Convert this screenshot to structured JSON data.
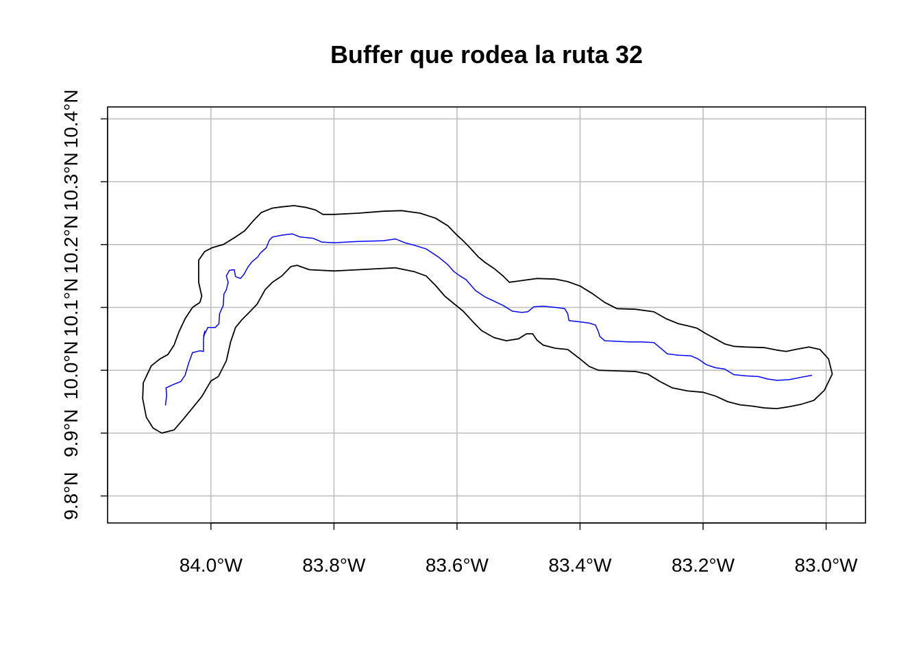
{
  "chart_data": {
    "type": "line",
    "title": "Buffer que rodea la ruta 32",
    "xlabel": "",
    "ylabel": "",
    "xlim": [
      -84.168,
      -82.936
    ],
    "ylim": [
      9.757,
      10.419
    ],
    "x_ticks": [
      {
        "value": -84.0,
        "label": "84.0°W"
      },
      {
        "value": -83.8,
        "label": "83.8°W"
      },
      {
        "value": -83.6,
        "label": "83.6°W"
      },
      {
        "value": -83.4,
        "label": "83.4°W"
      },
      {
        "value": -83.2,
        "label": "83.2°W"
      },
      {
        "value": -83.0,
        "label": "83.0°W"
      }
    ],
    "y_ticks": [
      {
        "value": 9.8,
        "label": "9.8°N"
      },
      {
        "value": 9.9,
        "label": "9.9°N"
      },
      {
        "value": 10.0,
        "label": "10.0°N"
      },
      {
        "value": 10.1,
        "label": "10.1°N"
      },
      {
        "value": 10.2,
        "label": "10.2°N"
      },
      {
        "value": 10.3,
        "label": "10.3°N"
      },
      {
        "value": 10.4,
        "label": "10.4°N"
      }
    ],
    "grid": true,
    "series": [
      {
        "color": "#0000ff",
        "points": [
          [
            -84.074,
            9.944
          ],
          [
            -84.072,
            9.96
          ],
          [
            -84.073,
            9.972
          ],
          [
            -84.062,
            9.977
          ],
          [
            -84.049,
            9.982
          ],
          [
            -84.042,
            9.992
          ],
          [
            -84.036,
            10.012
          ],
          [
            -84.03,
            10.028
          ],
          [
            -84.018,
            10.031
          ],
          [
            -84.012,
            10.03
          ],
          [
            -84.012,
            10.05
          ],
          [
            -84.01,
            10.062
          ],
          [
            -84.012,
            10.054
          ],
          [
            -84.005,
            10.068
          ],
          [
            -83.993,
            10.068
          ],
          [
            -83.987,
            10.074
          ],
          [
            -83.986,
            10.09
          ],
          [
            -83.98,
            10.103
          ],
          [
            -83.979,
            10.121
          ],
          [
            -83.975,
            10.128
          ],
          [
            -83.972,
            10.14
          ],
          [
            -83.975,
            10.15
          ],
          [
            -83.97,
            10.159
          ],
          [
            -83.962,
            10.16
          ],
          [
            -83.96,
            10.149
          ],
          [
            -83.952,
            10.146
          ],
          [
            -83.946,
            10.153
          ],
          [
            -83.94,
            10.164
          ],
          [
            -83.933,
            10.173
          ],
          [
            -83.924,
            10.18
          ],
          [
            -83.92,
            10.186
          ],
          [
            -83.91,
            10.195
          ],
          [
            -83.905,
            10.207
          ],
          [
            -83.9,
            10.212
          ],
          [
            -83.885,
            10.215
          ],
          [
            -83.868,
            10.217
          ],
          [
            -83.855,
            10.212
          ],
          [
            -83.834,
            10.21
          ],
          [
            -83.82,
            10.204
          ],
          [
            -83.8,
            10.203
          ],
          [
            -83.76,
            10.205
          ],
          [
            -83.72,
            10.206
          ],
          [
            -83.7,
            10.209
          ],
          [
            -83.685,
            10.203
          ],
          [
            -83.67,
            10.199
          ],
          [
            -83.65,
            10.193
          ],
          [
            -83.63,
            10.18
          ],
          [
            -83.615,
            10.168
          ],
          [
            -83.605,
            10.157
          ],
          [
            -83.595,
            10.15
          ],
          [
            -83.585,
            10.144
          ],
          [
            -83.57,
            10.127
          ],
          [
            -83.555,
            10.117
          ],
          [
            -83.54,
            10.11
          ],
          [
            -83.525,
            10.103
          ],
          [
            -83.51,
            10.094
          ],
          [
            -83.495,
            10.092
          ],
          [
            -83.485,
            10.093
          ],
          [
            -83.475,
            10.101
          ],
          [
            -83.46,
            10.102
          ],
          [
            -83.44,
            10.1
          ],
          [
            -83.425,
            10.098
          ],
          [
            -83.42,
            10.09
          ],
          [
            -83.418,
            10.079
          ],
          [
            -83.4,
            10.077
          ],
          [
            -83.385,
            10.075
          ],
          [
            -83.375,
            10.072
          ],
          [
            -83.37,
            10.061
          ],
          [
            -83.368,
            10.054
          ],
          [
            -83.36,
            10.047
          ],
          [
            -83.34,
            10.046
          ],
          [
            -83.32,
            10.045
          ],
          [
            -83.3,
            10.045
          ],
          [
            -83.28,
            10.044
          ],
          [
            -83.27,
            10.036
          ],
          [
            -83.258,
            10.026
          ],
          [
            -83.24,
            10.024
          ],
          [
            -83.22,
            10.023
          ],
          [
            -83.208,
            10.018
          ],
          [
            -83.195,
            10.009
          ],
          [
            -83.18,
            10.004
          ],
          [
            -83.165,
            10.002
          ],
          [
            -83.15,
            9.993
          ],
          [
            -83.13,
            9.991
          ],
          [
            -83.11,
            9.99
          ],
          [
            -83.095,
            9.986
          ],
          [
            -83.08,
            9.984
          ],
          [
            -83.06,
            9.985
          ],
          [
            -83.04,
            9.989
          ],
          [
            -83.023,
            9.992
          ]
        ]
      },
      {
        "color": "#000000",
        "closed": true,
        "points": [
          [
            -84.08,
            9.9
          ],
          [
            -84.06,
            9.905
          ],
          [
            -84.045,
            9.922
          ],
          [
            -84.03,
            9.94
          ],
          [
            -84.015,
            9.958
          ],
          [
            -84.0,
            9.983
          ],
          [
            -83.988,
            9.99
          ],
          [
            -83.975,
            10.015
          ],
          [
            -83.968,
            10.045
          ],
          [
            -83.96,
            10.068
          ],
          [
            -83.95,
            10.08
          ],
          [
            -83.94,
            10.09
          ],
          [
            -83.925,
            10.105
          ],
          [
            -83.912,
            10.128
          ],
          [
            -83.9,
            10.14
          ],
          [
            -83.885,
            10.15
          ],
          [
            -83.87,
            10.165
          ],
          [
            -83.86,
            10.167
          ],
          [
            -83.84,
            10.16
          ],
          [
            -83.8,
            10.158
          ],
          [
            -83.76,
            10.16
          ],
          [
            -83.72,
            10.162
          ],
          [
            -83.7,
            10.163
          ],
          [
            -83.67,
            10.157
          ],
          [
            -83.65,
            10.15
          ],
          [
            -83.635,
            10.135
          ],
          [
            -83.62,
            10.118
          ],
          [
            -83.605,
            10.106
          ],
          [
            -83.59,
            10.094
          ],
          [
            -83.575,
            10.078
          ],
          [
            -83.56,
            10.063
          ],
          [
            -83.54,
            10.052
          ],
          [
            -83.52,
            10.047
          ],
          [
            -83.5,
            10.05
          ],
          [
            -83.487,
            10.058
          ],
          [
            -83.477,
            10.058
          ],
          [
            -83.47,
            10.048
          ],
          [
            -83.46,
            10.04
          ],
          [
            -83.44,
            10.035
          ],
          [
            -83.42,
            10.033
          ],
          [
            -83.4,
            10.018
          ],
          [
            -83.385,
            10.006
          ],
          [
            -83.37,
            10.0
          ],
          [
            -83.34,
            9.999
          ],
          [
            -83.31,
            9.998
          ],
          [
            -83.29,
            9.994
          ],
          [
            -83.27,
            9.982
          ],
          [
            -83.25,
            9.972
          ],
          [
            -83.225,
            9.967
          ],
          [
            -83.2,
            9.965
          ],
          [
            -83.18,
            9.959
          ],
          [
            -83.16,
            9.95
          ],
          [
            -83.14,
            9.945
          ],
          [
            -83.12,
            9.943
          ],
          [
            -83.1,
            9.94
          ],
          [
            -83.08,
            9.939
          ],
          [
            -83.06,
            9.942
          ],
          [
            -83.04,
            9.946
          ],
          [
            -83.02,
            9.952
          ],
          [
            -83.003,
            9.968
          ],
          [
            -82.99,
            9.994
          ],
          [
            -82.996,
            10.018
          ],
          [
            -83.01,
            10.033
          ],
          [
            -83.028,
            10.037
          ],
          [
            -83.05,
            10.033
          ],
          [
            -83.065,
            10.03
          ],
          [
            -83.08,
            10.032
          ],
          [
            -83.1,
            10.036
          ],
          [
            -83.13,
            10.037
          ],
          [
            -83.15,
            10.038
          ],
          [
            -83.165,
            10.042
          ],
          [
            -83.18,
            10.05
          ],
          [
            -83.195,
            10.058
          ],
          [
            -83.21,
            10.067
          ],
          [
            -83.222,
            10.07
          ],
          [
            -83.24,
            10.074
          ],
          [
            -83.26,
            10.082
          ],
          [
            -83.28,
            10.093
          ],
          [
            -83.31,
            10.097
          ],
          [
            -83.34,
            10.098
          ],
          [
            -83.36,
            10.108
          ],
          [
            -83.38,
            10.122
          ],
          [
            -83.4,
            10.134
          ],
          [
            -83.42,
            10.141
          ],
          [
            -83.44,
            10.145
          ],
          [
            -83.47,
            10.146
          ],
          [
            -83.5,
            10.142
          ],
          [
            -83.515,
            10.14
          ],
          [
            -83.525,
            10.15
          ],
          [
            -83.54,
            10.162
          ],
          [
            -83.555,
            10.172
          ],
          [
            -83.565,
            10.18
          ],
          [
            -83.58,
            10.196
          ],
          [
            -83.59,
            10.206
          ],
          [
            -83.6,
            10.215
          ],
          [
            -83.615,
            10.23
          ],
          [
            -83.635,
            10.242
          ],
          [
            -83.66,
            10.25
          ],
          [
            -83.69,
            10.254
          ],
          [
            -83.72,
            10.253
          ],
          [
            -83.76,
            10.25
          ],
          [
            -83.8,
            10.248
          ],
          [
            -83.818,
            10.248
          ],
          [
            -83.83,
            10.255
          ],
          [
            -83.845,
            10.259
          ],
          [
            -83.865,
            10.262
          ],
          [
            -83.885,
            10.26
          ],
          [
            -83.9,
            10.258
          ],
          [
            -83.918,
            10.251
          ],
          [
            -83.932,
            10.237
          ],
          [
            -83.945,
            10.222
          ],
          [
            -83.96,
            10.212
          ],
          [
            -83.98,
            10.2
          ],
          [
            -83.998,
            10.195
          ],
          [
            -84.01,
            10.189
          ],
          [
            -84.02,
            10.175
          ],
          [
            -84.02,
            10.14
          ],
          [
            -84.015,
            10.118
          ],
          [
            -84.018,
            10.108
          ],
          [
            -84.03,
            10.1
          ],
          [
            -84.042,
            10.082
          ],
          [
            -84.052,
            10.061
          ],
          [
            -84.06,
            10.04
          ],
          [
            -84.07,
            10.025
          ],
          [
            -84.083,
            10.018
          ],
          [
            -84.097,
            10.007
          ],
          [
            -84.11,
            9.98
          ],
          [
            -84.111,
            9.955
          ],
          [
            -84.105,
            9.925
          ],
          [
            -84.094,
            9.908
          ],
          [
            -84.08,
            9.9
          ]
        ]
      }
    ]
  }
}
